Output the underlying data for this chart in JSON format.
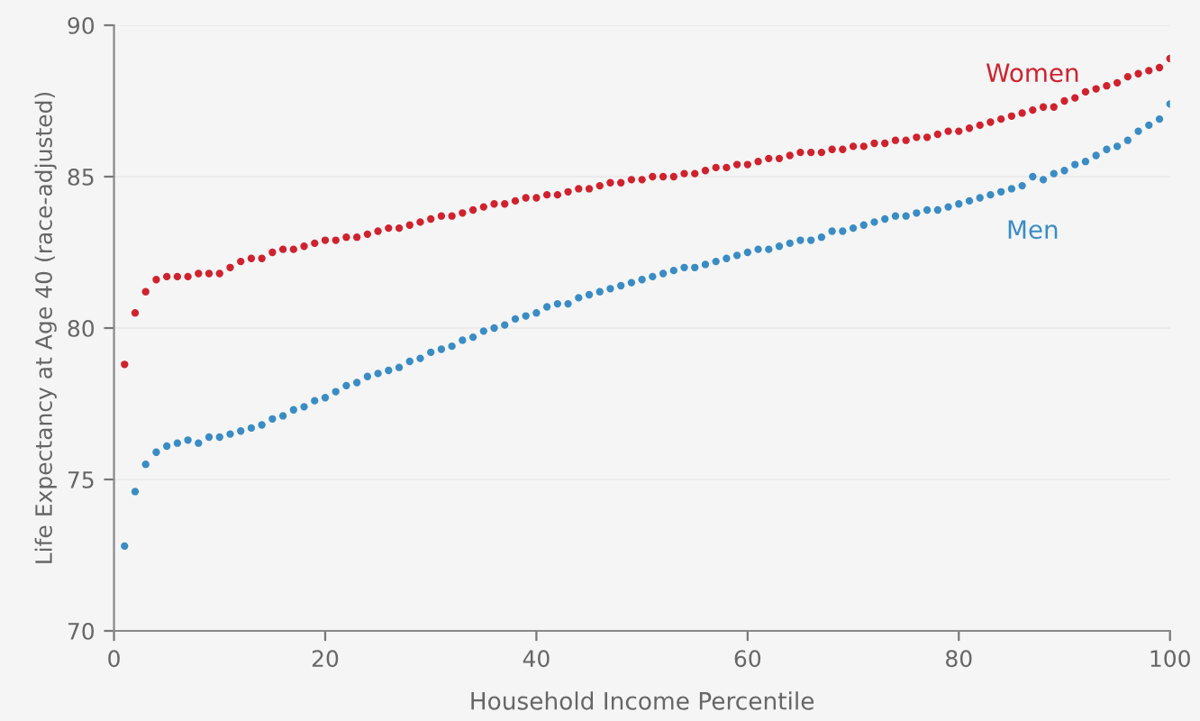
{
  "chart_data": {
    "type": "scatter",
    "xlabel": "Household Income Percentile",
    "ylabel": "Life Expectancy at Age 40 (race-adjusted)",
    "xlim": [
      0,
      100
    ],
    "ylim": [
      70,
      90
    ],
    "xticks": [
      0,
      20,
      40,
      60,
      80,
      100
    ],
    "yticks": [
      70,
      75,
      80,
      85,
      90
    ],
    "grid": "y",
    "legend": false,
    "marker": "circle",
    "x": [
      1,
      2,
      3,
      4,
      5,
      6,
      7,
      8,
      9,
      10,
      11,
      12,
      13,
      14,
      15,
      16,
      17,
      18,
      19,
      20,
      21,
      22,
      23,
      24,
      25,
      26,
      27,
      28,
      29,
      30,
      31,
      32,
      33,
      34,
      35,
      36,
      37,
      38,
      39,
      40,
      41,
      42,
      43,
      44,
      45,
      46,
      47,
      48,
      49,
      50,
      51,
      52,
      53,
      54,
      55,
      56,
      57,
      58,
      59,
      60,
      61,
      62,
      63,
      64,
      65,
      66,
      67,
      68,
      69,
      70,
      71,
      72,
      73,
      74,
      75,
      76,
      77,
      78,
      79,
      80,
      81,
      82,
      83,
      84,
      85,
      86,
      87,
      88,
      89,
      90,
      91,
      92,
      93,
      94,
      95,
      96,
      97,
      98,
      99,
      100
    ],
    "series": [
      {
        "name": "Women",
        "color": "#d0222e",
        "values": [
          78.8,
          80.5,
          81.2,
          81.6,
          81.7,
          81.7,
          81.7,
          81.8,
          81.8,
          81.8,
          82.0,
          82.2,
          82.3,
          82.3,
          82.5,
          82.6,
          82.6,
          82.7,
          82.8,
          82.9,
          82.9,
          83.0,
          83.0,
          83.1,
          83.2,
          83.3,
          83.3,
          83.4,
          83.5,
          83.6,
          83.7,
          83.7,
          83.8,
          83.9,
          84.0,
          84.1,
          84.1,
          84.2,
          84.3,
          84.3,
          84.4,
          84.4,
          84.5,
          84.6,
          84.6,
          84.7,
          84.8,
          84.8,
          84.9,
          84.9,
          85.0,
          85.0,
          85.0,
          85.1,
          85.1,
          85.2,
          85.3,
          85.3,
          85.4,
          85.4,
          85.5,
          85.6,
          85.6,
          85.7,
          85.8,
          85.8,
          85.8,
          85.9,
          85.9,
          86.0,
          86.0,
          86.1,
          86.1,
          86.2,
          86.2,
          86.3,
          86.3,
          86.4,
          86.5,
          86.5,
          86.6,
          86.7,
          86.8,
          86.9,
          87.0,
          87.1,
          87.2,
          87.3,
          87.3,
          87.5,
          87.6,
          87.8,
          87.9,
          88.0,
          88.1,
          88.3,
          88.4,
          88.5,
          88.6,
          88.9
        ]
      },
      {
        "name": "Men",
        "color": "#3a8cc4",
        "values": [
          72.8,
          74.6,
          75.5,
          75.9,
          76.1,
          76.2,
          76.3,
          76.2,
          76.4,
          76.4,
          76.5,
          76.6,
          76.7,
          76.8,
          77.0,
          77.1,
          77.3,
          77.4,
          77.6,
          77.7,
          77.9,
          78.1,
          78.2,
          78.4,
          78.5,
          78.6,
          78.7,
          78.9,
          79.0,
          79.2,
          79.3,
          79.4,
          79.6,
          79.7,
          79.9,
          80.0,
          80.1,
          80.3,
          80.4,
          80.5,
          80.7,
          80.8,
          80.8,
          81.0,
          81.1,
          81.2,
          81.3,
          81.4,
          81.5,
          81.6,
          81.7,
          81.8,
          81.9,
          82.0,
          82.0,
          82.1,
          82.2,
          82.3,
          82.4,
          82.5,
          82.6,
          82.6,
          82.7,
          82.8,
          82.9,
          82.9,
          83.0,
          83.2,
          83.2,
          83.3,
          83.4,
          83.5,
          83.6,
          83.7,
          83.7,
          83.8,
          83.9,
          83.9,
          84.0,
          84.1,
          84.2,
          84.3,
          84.4,
          84.5,
          84.6,
          84.7,
          85.0,
          84.9,
          85.1,
          85.2,
          85.4,
          85.5,
          85.7,
          85.9,
          86.0,
          86.2,
          86.5,
          86.7,
          86.9,
          87.4
        ]
      }
    ]
  }
}
